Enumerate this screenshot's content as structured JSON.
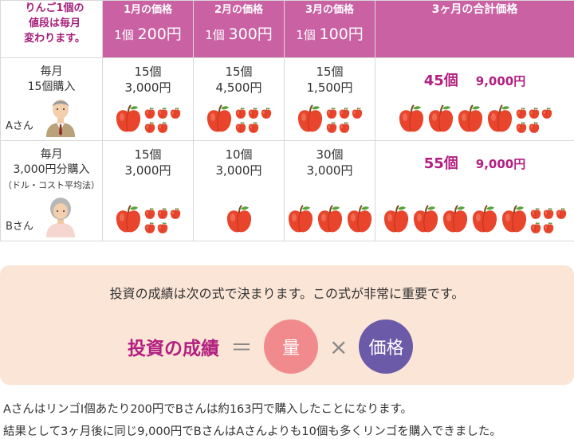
{
  "corner": [
    "りんご1個の",
    "値段は毎月",
    "変わります。"
  ],
  "headers": [
    {
      "month": "1月の価格",
      "prefix": "1個",
      "price": "200円"
    },
    {
      "month": "2月の価格",
      "prefix": "1個",
      "price": "300円"
    },
    {
      "month": "3月の価格",
      "prefix": "1個",
      "price": "100円"
    }
  ],
  "total_header": "3ヶ月の合計価格",
  "rows": [
    {
      "label1": "毎月",
      "label2": "15個購入",
      "sub": "",
      "person": "Aさん",
      "cells": [
        {
          "qty": "15個",
          "amount": "3,000円"
        },
        {
          "qty": "15個",
          "amount": "4,500円"
        },
        {
          "qty": "15個",
          "amount": "1,500円"
        }
      ],
      "total_qty": "45個",
      "total_amount": "9,000円"
    },
    {
      "label1": "毎月",
      "label2": "3,000円分購入",
      "sub": "（ドル・コスト平均法）",
      "person": "Bさん",
      "cells": [
        {
          "qty": "15個",
          "amount": "3,000円"
        },
        {
          "qty": "10個",
          "amount": "3,000円"
        },
        {
          "qty": "30個",
          "amount": "3,000円"
        }
      ],
      "total_qty": "55個",
      "total_amount": "9,000円"
    }
  ],
  "formula": {
    "intro": "投資の成績は次の式で決まります。この式が非常に重要です。",
    "label": "投資の成績",
    "equals": "＝",
    "quantity": "量",
    "times": "×",
    "price": "価格"
  },
  "notes": [
    "AさんはリンゴⅠ個あたり200円でBさんは約163円で購入したことになります。",
    "結果として3ヶ月後に同じ9,000円でBさんはAさんよりも10個も多くリンゴを購入できました。"
  ],
  "colors": {
    "header_bg": "#c961a3",
    "accent_text": "#b21f80",
    "apple": "#e8452c",
    "formula_box": "#fbe5d6",
    "quantity_circle": "#f08a8d",
    "price_circle": "#6a5aa8"
  }
}
